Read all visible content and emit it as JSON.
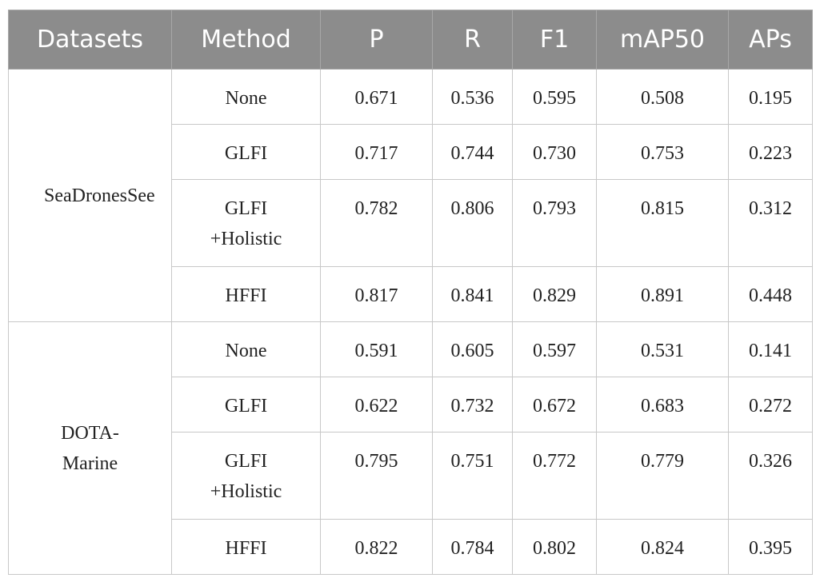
{
  "table": {
    "header": [
      "Datasets",
      "Method",
      "P",
      "R",
      "F1",
      "mAP50",
      "APs"
    ],
    "groups": [
      {
        "dataset": "SeaDronesSee",
        "rows": [
          {
            "method": "None",
            "values": [
              "0.671",
              "0.536",
              "0.595",
              "0.508",
              "0.195"
            ]
          },
          {
            "method": "GLFI",
            "values": [
              "0.717",
              "0.744",
              "0.730",
              "0.753",
              "0.223"
            ]
          },
          {
            "method": "GLFI +Holistic",
            "values": [
              "0.782",
              "0.806",
              "0.793",
              "0.815",
              "0.312"
            ]
          },
          {
            "method": "HFFI",
            "values": [
              "0.817",
              "0.841",
              "0.829",
              "0.891",
              "0.448"
            ]
          }
        ]
      },
      {
        "dataset": "DOTA-Marine",
        "rows": [
          {
            "method": "None",
            "values": [
              "0.591",
              "0.605",
              "0.597",
              "0.531",
              "0.141"
            ]
          },
          {
            "method": "GLFI",
            "values": [
              "0.622",
              "0.732",
              "0.672",
              "0.683",
              "0.272"
            ]
          },
          {
            "method": "GLFI +Holistic",
            "values": [
              "0.795",
              "0.751",
              "0.772",
              "0.779",
              "0.326"
            ]
          },
          {
            "method": "HFFI",
            "values": [
              "0.822",
              "0.784",
              "0.802",
              "0.824",
              "0.395"
            ]
          }
        ]
      }
    ]
  }
}
